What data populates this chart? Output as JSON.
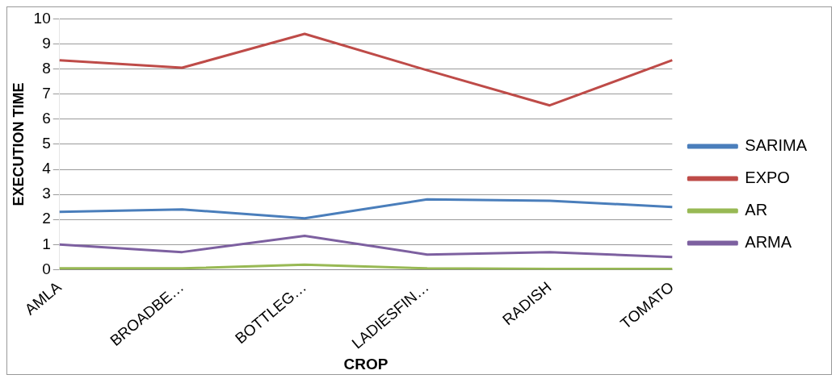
{
  "chart_data": {
    "type": "line",
    "xlabel": "CROP",
    "ylabel": "EXECUTION TIME",
    "categories": [
      "AMLA",
      "BROADBE…",
      "BOTTLEG…",
      "LADIESFIN…",
      "RADISH",
      "TOMATO"
    ],
    "series": [
      {
        "name": "SARIMA",
        "color": "#4a7ebb",
        "values": [
          2.3,
          2.4,
          2.05,
          2.8,
          2.75,
          2.5
        ]
      },
      {
        "name": "EXPO",
        "color": "#be4b48",
        "values": [
          8.35,
          8.05,
          9.4,
          7.95,
          6.55,
          8.35
        ]
      },
      {
        "name": "AR",
        "color": "#98b954",
        "values": [
          0.05,
          0.05,
          0.2,
          0.05,
          0.03,
          0.03
        ]
      },
      {
        "name": "ARMA",
        "color": "#7d60a0",
        "values": [
          1.0,
          0.7,
          1.35,
          0.6,
          0.7,
          0.5
        ]
      }
    ],
    "ylim": [
      0,
      10
    ],
    "yticks": [
      0,
      1,
      2,
      3,
      4,
      5,
      6,
      7,
      8,
      9,
      10
    ],
    "grid": "y",
    "legend": "right",
    "marker": "none",
    "line_style": "solid"
  }
}
